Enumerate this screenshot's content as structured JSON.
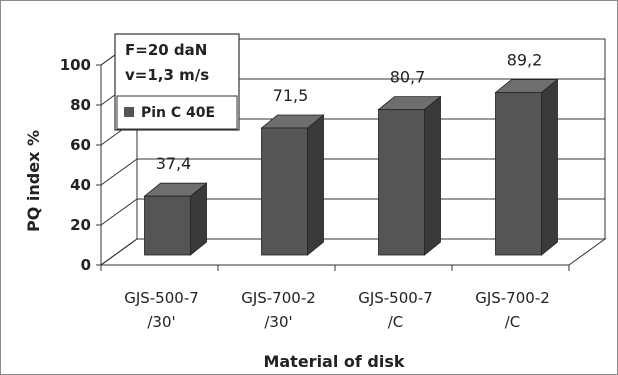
{
  "chart_data": {
    "type": "bar",
    "categories": [
      [
        "GJS-500-7",
        "/30'"
      ],
      [
        "GJS-700-2",
        "/30'"
      ],
      [
        "GJS-500-7",
        "/C"
      ],
      [
        "GJS-700-2",
        "/C"
      ]
    ],
    "series": [
      {
        "name": "Pin C 40E",
        "values": [
          37.4,
          71.5,
          80.7,
          89.2
        ],
        "color": "#555555"
      }
    ],
    "data_labels": [
      "37,4",
      "71,5",
      "80,7",
      "89,2"
    ],
    "xlabel": "Material of disk",
    "ylabel": "PQ index %",
    "ylim": [
      0,
      100
    ],
    "yticks": [
      0,
      20,
      40,
      60,
      80,
      100
    ],
    "grid": true,
    "three_d": true,
    "annotation": [
      "F=20 daN",
      "v=1,3 m/s"
    ],
    "legend_position": "top-left"
  }
}
